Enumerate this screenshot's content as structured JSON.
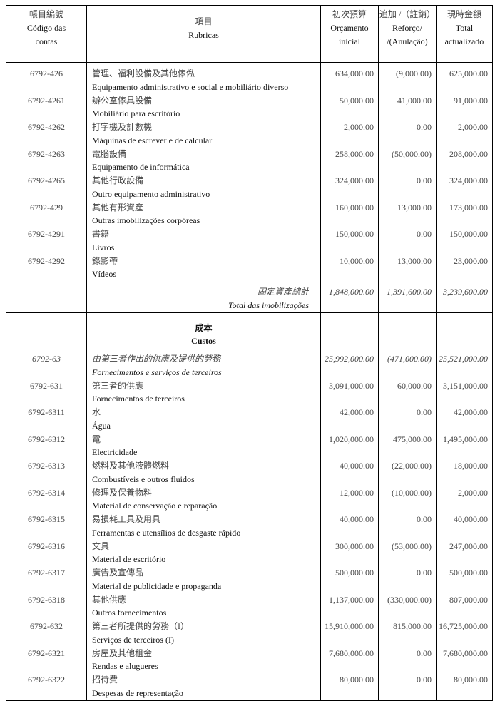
{
  "header": {
    "code": {
      "zh": "帳目編號",
      "pt1": "Código das",
      "pt2": "contas"
    },
    "rubric": {
      "zh": "項目",
      "pt": "Rubricas"
    },
    "initial": {
      "zh": "初次預算",
      "pt1": "Orçamento",
      "pt2": "inicial"
    },
    "change": {
      "zh": "追加 /（註銷）",
      "pt1": "Reforço/",
      "pt2": "/(Anulação)"
    },
    "total": {
      "zh": "現時金額",
      "pt1": "Total",
      "pt2": "actualizado"
    }
  },
  "section1": [
    {
      "code": "6792-426",
      "zh": "管理、福利設備及其他傢俬",
      "pt": "Equipamento administrativo e social e mobiliário diverso",
      "initial": "634,000.00",
      "change": "(9,000.00)",
      "total": "625,000.00"
    },
    {
      "code": "6792-4261",
      "zh": "辦公室傢具設備",
      "pt": "Mobiliário para escritório",
      "initial": "50,000.00",
      "change": "41,000.00",
      "total": "91,000.00"
    },
    {
      "code": "6792-4262",
      "zh": "打字機及計數機",
      "pt": "Máquinas  de escrever e de calcular",
      "initial": "2,000.00",
      "change": "0.00",
      "total": "2,000.00"
    },
    {
      "code": "6792-4263",
      "zh": "電腦設備",
      "pt": "Equipamento de informática",
      "initial": "258,000.00",
      "change": "(50,000.00)",
      "total": "208,000.00"
    },
    {
      "code": "6792-4265",
      "zh": "其他行政設備",
      "pt": "Outro equipamento administrativo",
      "initial": "324,000.00",
      "change": "0.00",
      "total": "324,000.00"
    },
    {
      "code": "6792-429",
      "zh": "其他有形資產",
      "pt": "Outras imobilizações corpóreas",
      "initial": "160,000.00",
      "change": "13,000.00",
      "total": "173,000.00"
    },
    {
      "code": "6792-4291",
      "zh": "書籍",
      "pt": "Livros",
      "initial": "150,000.00",
      "change": "0.00",
      "total": "150,000.00"
    },
    {
      "code": "6792-4292",
      "zh": "錄影帶",
      "pt": "Vídeos",
      "initial": "10,000.00",
      "change": "13,000.00",
      "total": "23,000.00"
    }
  ],
  "total_row": {
    "zh": "固定資產總計",
    "pt": "Total das imobilizações",
    "initial": "1,848,000.00",
    "change": "1,391,600.00",
    "total": "3,239,600.00"
  },
  "section2_heading": {
    "zh": "成本",
    "pt": "Custos"
  },
  "section2": [
    {
      "code": "6792-63",
      "zh": "由第三者作出的供應及提供的勞務",
      "pt": "Fornecimentos e serviços de terceiros",
      "initial": "25,992,000.00",
      "change": "(471,000.00)",
      "total": "25,521,000.00",
      "italic": true
    },
    {
      "code": "6792-631",
      "zh": "第三者的供應",
      "pt": "Fornecimentos de terceiros",
      "initial": "3,091,000.00",
      "change": "60,000.00",
      "total": "3,151,000.00"
    },
    {
      "code": "6792-6311",
      "zh": "水",
      "pt": "Água",
      "initial": "42,000.00",
      "change": "0.00",
      "total": "42,000.00"
    },
    {
      "code": "6792-6312",
      "zh": "電",
      "pt": "Electricidade",
      "initial": "1,020,000.00",
      "change": "475,000.00",
      "total": "1,495,000.00"
    },
    {
      "code": "6792-6313",
      "zh": "燃料及其他液體燃料",
      "pt": "Combustíveis e outros fluidos",
      "initial": "40,000.00",
      "change": "(22,000.00)",
      "total": "18,000.00"
    },
    {
      "code": "6792-6314",
      "zh": "修理及保養物料",
      "pt": "Material de conservação e reparação",
      "initial": "12,000.00",
      "change": "(10,000.00)",
      "total": "2,000.00"
    },
    {
      "code": "6792-6315",
      "zh": "易損耗工具及用具",
      "pt": "Ferramentas e utensílios de desgaste rápido",
      "initial": "40,000.00",
      "change": "0.00",
      "total": "40,000.00"
    },
    {
      "code": "6792-6316",
      "zh": "文具",
      "pt": "Material de escritório",
      "initial": "300,000.00",
      "change": "(53,000.00)",
      "total": "247,000.00"
    },
    {
      "code": "6792-6317",
      "zh": "廣告及宣傳品",
      "pt": "Material de publicidade e propaganda",
      "initial": "500,000.00",
      "change": "0.00",
      "total": "500,000.00"
    },
    {
      "code": "6792-6318",
      "zh": "其他供應",
      "pt": "Outros fornecimentos",
      "initial": "1,137,000.00",
      "change": "(330,000.00)",
      "total": "807,000.00"
    },
    {
      "code": "6792-632",
      "zh": "第三者所提供的勞務（I）",
      "pt": "Serviços de terceiros (I)",
      "initial": "15,910,000.00",
      "change": "815,000.00",
      "total": "16,725,000.00"
    },
    {
      "code": "6792-6321",
      "zh": "房屋及其他租金",
      "pt": "Rendas e alugueres",
      "initial": "7,680,000.00",
      "change": "0.00",
      "total": "7,680,000.00"
    },
    {
      "code": "6792-6322",
      "zh": "招待費",
      "pt": "Despesas de representação",
      "initial": "80,000.00",
      "change": "0.00",
      "total": "80,000.00"
    }
  ]
}
